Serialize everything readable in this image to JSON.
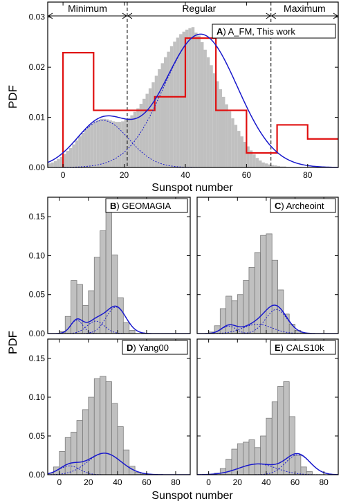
{
  "colors": {
    "histogram_fill": "#c0c0c0",
    "histogram_edge": "#7a7a7a",
    "fit": "#1a1acc",
    "components": "#1a1acc",
    "red_steps": "#e01010",
    "frame": "#000000"
  },
  "figure": {
    "ylabel_top": "PDF",
    "ylabel_bottom": "PDF",
    "xlabel_top": "Sunspot number",
    "xlabel_bottom": "Sunspot number"
  },
  "chart_data": [
    {
      "type": "bar",
      "panel": "A",
      "legend_letter": "A",
      "legend_text": ") A_FM, This work",
      "xlim": [
        -5,
        90
      ],
      "ylim": [
        0,
        0.033
      ],
      "xticks": [
        0,
        20,
        40,
        60,
        80
      ],
      "xtick_labels": [
        "0",
        "20",
        "40",
        "60",
        "80"
      ],
      "yticks": [
        0.0,
        0.01,
        0.02,
        0.03
      ],
      "ytick_labels": [
        "0.00",
        "0.01",
        "0.02",
        "0.03"
      ],
      "regions": [
        {
          "label": "Minimum",
          "from": -5,
          "to": 21
        },
        {
          "label": "Regular",
          "from": 21,
          "to": 68
        },
        {
          "label": "Maximum",
          "from": 68,
          "to": 90
        }
      ],
      "vlines": [
        21,
        68
      ],
      "histogram": {
        "bin_width": 1,
        "x_start": -5,
        "values": [
          0.0008,
          0.001,
          0.0013,
          0.0017,
          0.0021,
          0.0027,
          0.0033,
          0.0039,
          0.0046,
          0.0054,
          0.0062,
          0.0069,
          0.0076,
          0.0082,
          0.0088,
          0.0092,
          0.0095,
          0.0097,
          0.0097,
          0.0096,
          0.0094,
          0.0092,
          0.0091,
          0.0091,
          0.0092,
          0.0095,
          0.0099,
          0.0104,
          0.0111,
          0.0118,
          0.0127,
          0.0137,
          0.0147,
          0.0158,
          0.017,
          0.0183,
          0.0196,
          0.0208,
          0.022,
          0.0231,
          0.0242,
          0.0251,
          0.0259,
          0.0266,
          0.0271,
          0.0275,
          0.0278,
          0.028,
          0.0269,
          0.0263,
          0.025,
          0.0235,
          0.022,
          0.0204,
          0.0188,
          0.0172,
          0.0156,
          0.0141,
          0.0126,
          0.0112,
          0.0098,
          0.0085,
          0.0073,
          0.0062,
          0.0051,
          0.0042,
          0.0034,
          0.0026,
          0.0019,
          0.0014,
          0.001,
          0.0008,
          0.0006,
          0.0005,
          0.0004,
          0.0003,
          0.0002,
          0.0002,
          0.0001,
          0.0001,
          0.0001,
          0.0001,
          0.0001,
          0.0,
          0.0,
          0.0,
          0.0,
          0.0,
          0.0,
          0.0,
          0.0,
          0.0,
          0.0,
          0.0,
          0.0
        ]
      },
      "fit_components": [
        {
          "w": 0.2,
          "mu": 13,
          "sigma": 8.5
        },
        {
          "w": 0.8,
          "mu": 45,
          "sigma": 12.0
        }
      ],
      "red_step": {
        "edges": [
          0,
          10,
          20,
          30,
          40,
          50,
          60,
          70,
          80,
          90
        ],
        "values": [
          0.0229,
          0.0114,
          0.0114,
          0.0141,
          0.0258,
          0.0114,
          0.0029,
          0.0085,
          0.0057
        ]
      }
    },
    {
      "type": "bar",
      "panel": "B",
      "legend_letter": "B",
      "legend_text": ") GEOMAGIA",
      "xlim": [
        -8,
        90
      ],
      "ylim": [
        0,
        0.175
      ],
      "xticks": [
        0,
        20,
        40,
        60,
        80
      ],
      "xtick_labels": [
        "",
        "",
        "",
        "",
        ""
      ],
      "yticks": [
        0.0,
        0.05,
        0.1,
        0.15
      ],
      "ytick_labels": [
        "0.00",
        "0.05",
        "0.10",
        "0.15"
      ],
      "histogram": {
        "bin_width": 4,
        "x_start": -8,
        "values": [
          0,
          0,
          0.003,
          0.022,
          0.068,
          0.063,
          0.036,
          0.055,
          0.098,
          0.132,
          0.16,
          0.101,
          0.046,
          0.014,
          0.004,
          0,
          0,
          0,
          0,
          0,
          0,
          0,
          0,
          0
        ]
      },
      "fit_components": [
        {
          "w": 0.18,
          "mu": 12,
          "sigma": 4.2
        },
        {
          "w": 0.24,
          "mu": 25,
          "sigma": 6.0
        },
        {
          "w": 0.58,
          "mu": 39,
          "sigma": 6.8
        }
      ]
    },
    {
      "type": "bar",
      "panel": "C",
      "legend_letter": "C",
      "legend_text": ") Archeoint",
      "xlim": [
        -8,
        90
      ],
      "ylim": [
        0,
        0.175
      ],
      "xticks": [
        0,
        20,
        40,
        60,
        80
      ],
      "xtick_labels": [
        "",
        "",
        "",
        "",
        ""
      ],
      "yticks": [
        0.0,
        0.05,
        0.1,
        0.15
      ],
      "ytick_labels": [
        "",
        "",
        "",
        ""
      ],
      "histogram": {
        "bin_width": 4,
        "x_start": -8,
        "values": [
          0,
          0,
          0.002,
          0.01,
          0.032,
          0.048,
          0.042,
          0.05,
          0.068,
          0.085,
          0.104,
          0.126,
          0.128,
          0.094,
          0.056,
          0.025,
          0.012,
          0.004,
          0.001,
          0,
          0,
          0,
          0,
          0
        ]
      },
      "fit_components": [
        {
          "w": 0.12,
          "mu": 14,
          "sigma": 5.0
        },
        {
          "w": 0.3,
          "mu": 34,
          "sigma": 10.0
        },
        {
          "w": 0.58,
          "mu": 47,
          "sigma": 7.5
        }
      ]
    },
    {
      "type": "bar",
      "panel": "D",
      "legend_letter": "D",
      "legend_text": ") Yang00",
      "xlim": [
        -8,
        90
      ],
      "ylim": [
        0,
        0.175
      ],
      "xticks": [
        0,
        20,
        40,
        60,
        80
      ],
      "xtick_labels": [
        "0",
        "20",
        "40",
        "60",
        "80"
      ],
      "yticks": [
        0.0,
        0.05,
        0.1,
        0.15
      ],
      "ytick_labels": [
        "0.00",
        "0.05",
        "0.10",
        "0.15"
      ],
      "histogram": {
        "bin_width": 4,
        "x_start": -8,
        "values": [
          0.002,
          0.01,
          0.03,
          0.048,
          0.055,
          0.07,
          0.084,
          0.1,
          0.124,
          0.127,
          0.12,
          0.092,
          0.062,
          0.032,
          0.011,
          0.003,
          0.001,
          0,
          0,
          0,
          0,
          0,
          0,
          0
        ]
      },
      "fit_components": [
        {
          "w": 0.2,
          "mu": 7,
          "sigma": 7.0
        },
        {
          "w": 0.8,
          "mu": 31,
          "sigma": 11.5
        }
      ]
    },
    {
      "type": "bar",
      "panel": "E",
      "legend_letter": "E",
      "legend_text": ") CALS10k",
      "xlim": [
        -8,
        90
      ],
      "ylim": [
        0,
        0.175
      ],
      "xticks": [
        0,
        20,
        40,
        60,
        80
      ],
      "xtick_labels": [
        "0",
        "20",
        "40",
        "60",
        "80"
      ],
      "yticks": [
        0.0,
        0.05,
        0.1,
        0.15
      ],
      "ytick_labels": [
        "",
        "",
        "",
        ""
      ],
      "histogram": {
        "bin_width": 4,
        "x_start": -8,
        "values": [
          0,
          0,
          0,
          0.002,
          0.008,
          0.02,
          0.033,
          0.04,
          0.042,
          0.045,
          0.035,
          0.05,
          0.073,
          0.094,
          0.114,
          0.12,
          0.075,
          0.025,
          0.01,
          0.004,
          0,
          0,
          0,
          0
        ]
      },
      "fit_components": [
        {
          "w": 0.45,
          "mu": 34,
          "sigma": 13.0
        },
        {
          "w": 0.55,
          "mu": 62,
          "sigma": 8.5
        }
      ]
    }
  ]
}
